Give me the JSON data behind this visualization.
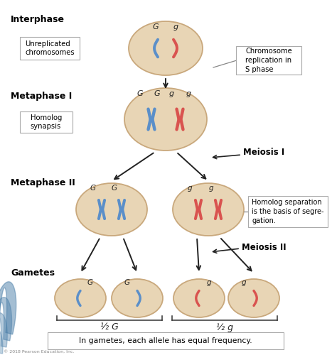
{
  "bg_color": "#ffffff",
  "cell_color": "#e8d5b5",
  "cell_edge_color": "#c9a87c",
  "blue_chrom": "#5b8fc9",
  "red_chrom": "#d9534f",
  "arrow_color": "#222222",
  "text_color": "#000000",
  "bottom_text": "In gametes, each allele has equal frequency.",
  "half_G": "½ G",
  "half_g": "½ g",
  "fig_w": 4.67,
  "fig_h": 5.0,
  "dpi": 100
}
